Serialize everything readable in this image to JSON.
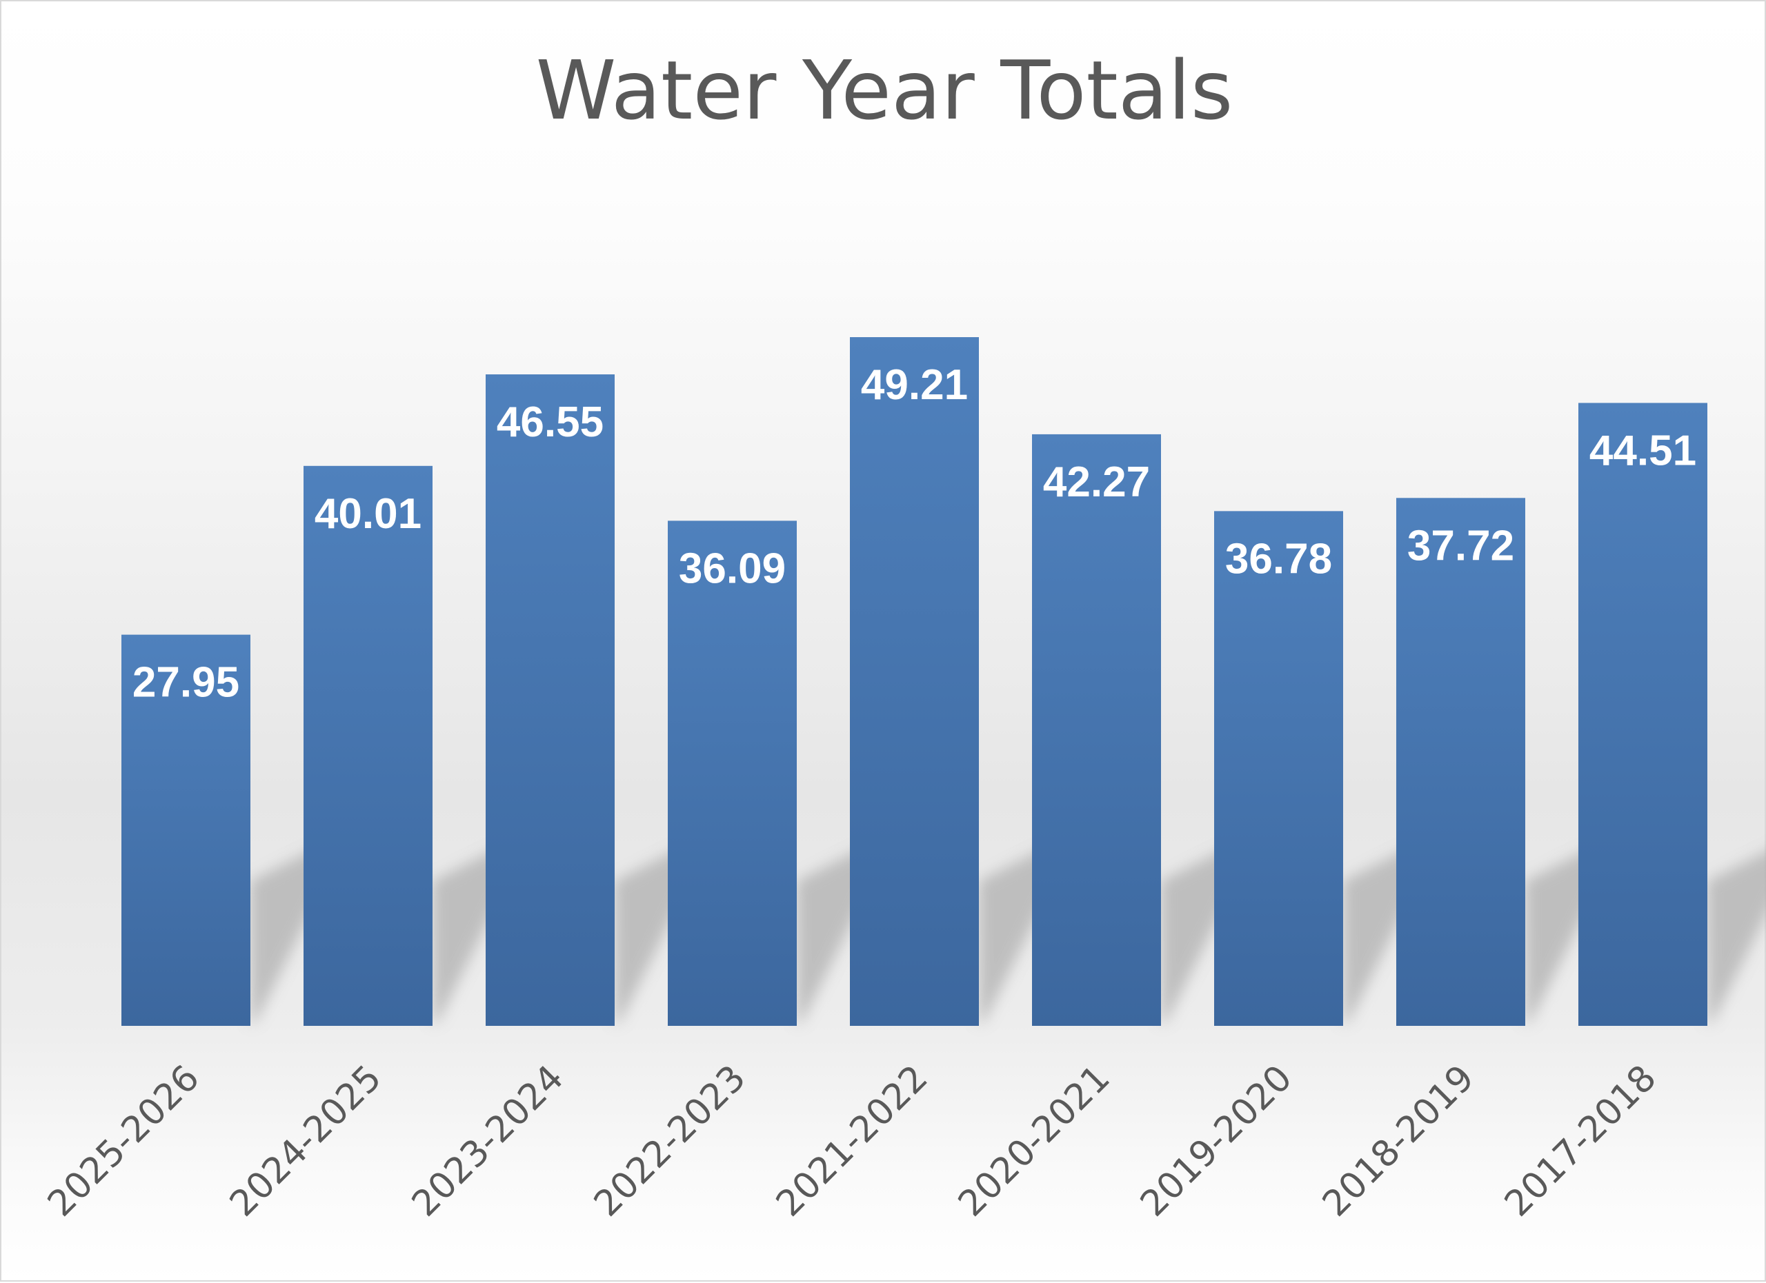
{
  "chart_data": {
    "type": "bar",
    "title": "Water Year Totals",
    "xlabel": "",
    "ylabel": "",
    "categories": [
      "2025-2026",
      "2024-2025",
      "2023-2024",
      "2022-2023",
      "2021-2022",
      "2020-2021",
      "2019-2020",
      "2018-2019",
      "2017-2018"
    ],
    "values": [
      27.95,
      40.01,
      46.55,
      36.09,
      49.21,
      42.27,
      36.78,
      37.72,
      44.51
    ],
    "data_labels": [
      "27.95",
      "40.01",
      "46.55",
      "36.09",
      "49.21",
      "42.27",
      "36.78",
      "37.72",
      "44.51"
    ],
    "ylim": [
      0,
      50
    ],
    "grid": false,
    "legend": "none",
    "y_axis_visible": false,
    "bar_color": "#4f81bd",
    "bar_color_dark": "#3e68a0",
    "label_color": "#ffffff",
    "text_color": "#595959"
  }
}
